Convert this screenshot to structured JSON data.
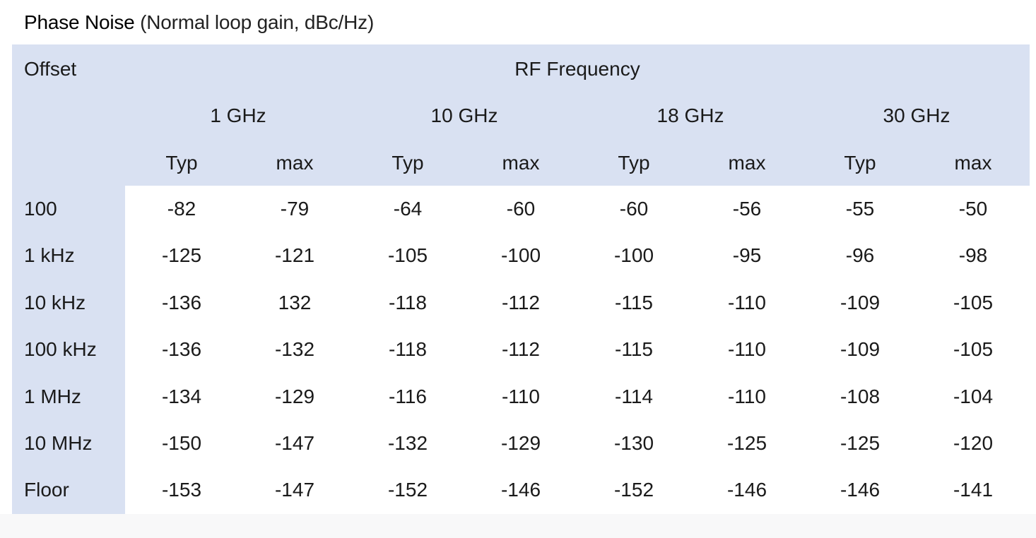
{
  "heading": {
    "title": "Phase Noise",
    "subtitle": "(Normal loop gain, dBc/Hz)"
  },
  "table": {
    "offset_label": "Offset",
    "group_label": "RF Frequency",
    "frequencies": [
      "1 GHz",
      "10 GHz",
      "18 GHz",
      "30 GHz"
    ],
    "sub_headers": [
      "Typ",
      "max",
      "Typ",
      "max",
      "Typ",
      "max",
      "Typ",
      "max"
    ],
    "rows": [
      {
        "offset": "100",
        "values": [
          "-82",
          "-79",
          "-64",
          "-60",
          "-60",
          "-56",
          "-55",
          "-50"
        ]
      },
      {
        "offset": "1 kHz",
        "values": [
          "-125",
          "-121",
          "-105",
          "-100",
          "-100",
          "-95",
          "-96",
          "-98"
        ]
      },
      {
        "offset": "10 kHz",
        "values": [
          "-136",
          "132",
          "-118",
          "-112",
          "-115",
          "-110",
          "-109",
          "-105"
        ]
      },
      {
        "offset": "100 kHz",
        "values": [
          "-136",
          "-132",
          "-118",
          "-112",
          "-115",
          "-110",
          "-109",
          "-105"
        ]
      },
      {
        "offset": "1 MHz",
        "values": [
          "-134",
          "-129",
          "-116",
          "-110",
          "-114",
          "-110",
          "-108",
          "-104"
        ]
      },
      {
        "offset": "10 MHz",
        "values": [
          "-150",
          "-147",
          "-132",
          "-129",
          "-130",
          "-125",
          "-125",
          "-120"
        ]
      },
      {
        "offset": "Floor",
        "values": [
          "-153",
          "-147",
          "-152",
          "-146",
          "-152",
          "-146",
          "-146",
          "-141"
        ]
      }
    ]
  },
  "colors": {
    "header_fill": "#d9e1f2",
    "text": "#1a1a1a"
  }
}
